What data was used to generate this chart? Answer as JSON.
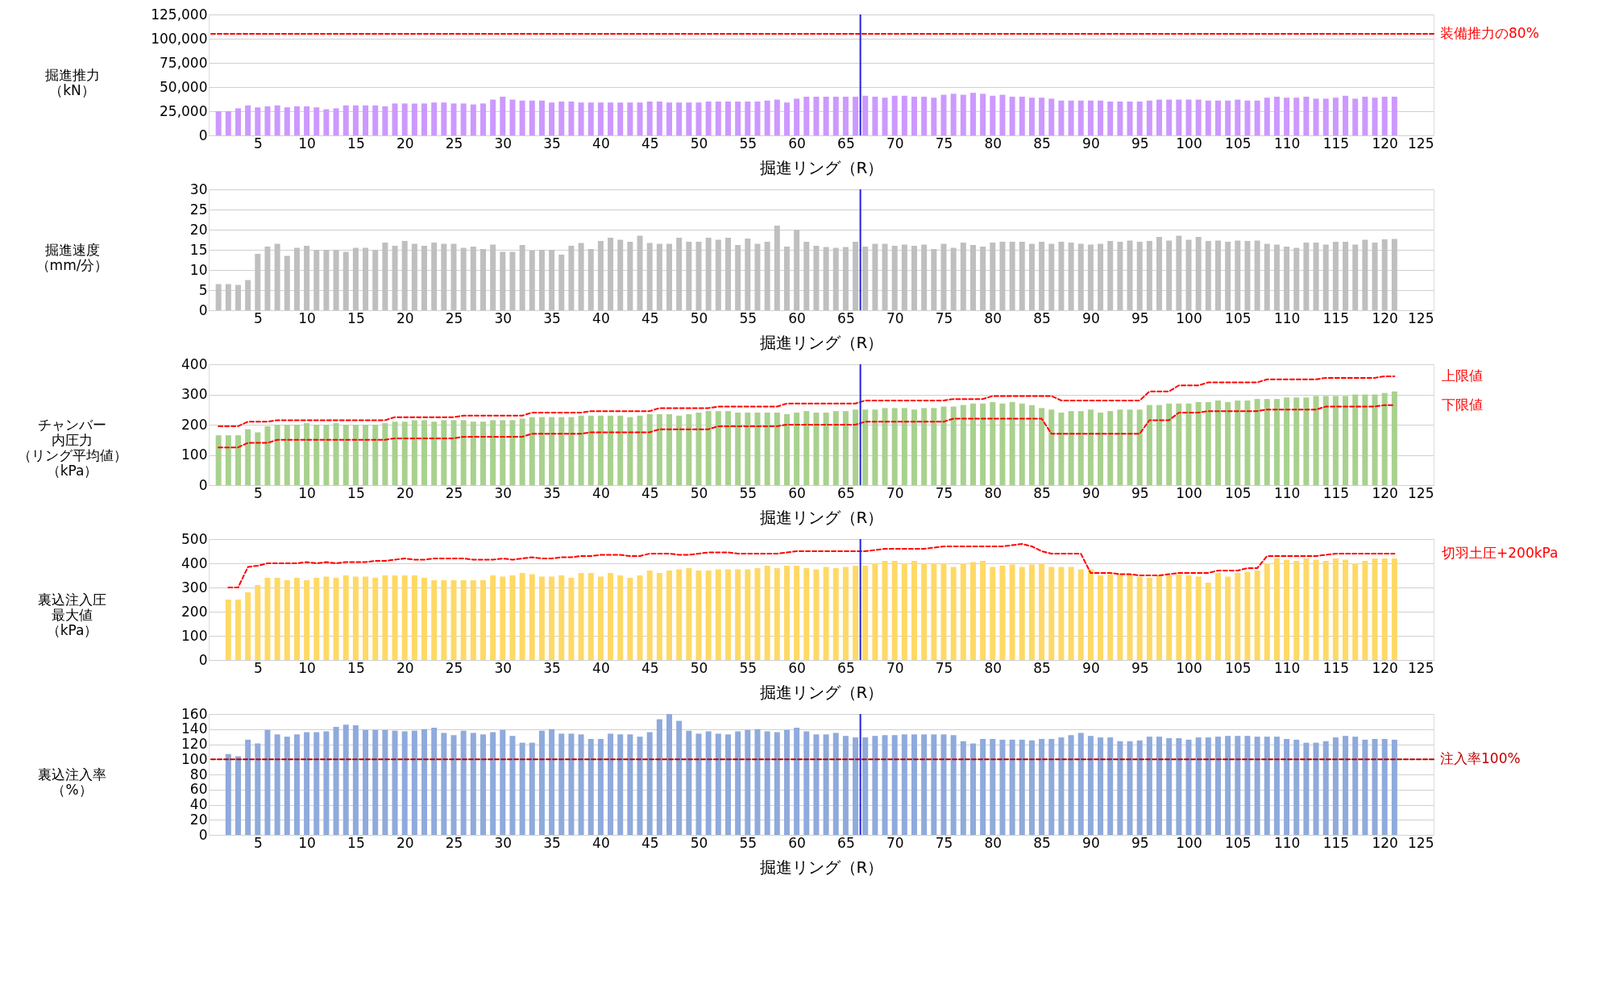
{
  "chart_data": [
    {
      "type": "bar",
      "ylabel": "掘進推力（kN）",
      "xlabel": "掘進リング（R）",
      "grid": "y",
      "xlim": [
        0,
        125
      ],
      "xticks": [
        5,
        10,
        15,
        20,
        25,
        30,
        35,
        40,
        45,
        50,
        55,
        60,
        65,
        70,
        75,
        80,
        85,
        90,
        95,
        100,
        105,
        110,
        115,
        120,
        125
      ],
      "ylim": [
        0,
        125000
      ],
      "yticks": [
        {
          "value": 0,
          "label": "0"
        },
        {
          "value": 25000,
          "label": "25,000"
        },
        {
          "value": 50000,
          "label": "50,000"
        },
        {
          "value": 75000,
          "label": "75,000"
        },
        {
          "value": 100000,
          "label": "100,000"
        },
        {
          "value": 125000,
          "label": "125,000"
        }
      ],
      "x": [
        1,
        2,
        3,
        4,
        5,
        6,
        7,
        8,
        9,
        10,
        11,
        12,
        13,
        14,
        15,
        16,
        17,
        18,
        19,
        20,
        21,
        22,
        23,
        24,
        25,
        26,
        27,
        28,
        29,
        30,
        31,
        32,
        33,
        34,
        35,
        36,
        37,
        38,
        39,
        40,
        41,
        42,
        43,
        44,
        45,
        46,
        47,
        48,
        49,
        50,
        51,
        52,
        53,
        54,
        55,
        56,
        57,
        58,
        59,
        60,
        61,
        62,
        63,
        64,
        65,
        66,
        67,
        68,
        69,
        70,
        71,
        72,
        73,
        74,
        75,
        76,
        77,
        78,
        79,
        80,
        81,
        82,
        83,
        84,
        85,
        86,
        87,
        88,
        89,
        90,
        91,
        92,
        93,
        94,
        95,
        96,
        97,
        98,
        99,
        100,
        101,
        102,
        103,
        104,
        105,
        106,
        107,
        108,
        109,
        110,
        111,
        112,
        113,
        114,
        115,
        116,
        117,
        118,
        119,
        120,
        121
      ],
      "series": [
        {
          "color": "#cc99ff",
          "values": [
            25000,
            25000,
            28000,
            31000,
            29000,
            30000,
            31000,
            29000,
            30000,
            30000,
            29000,
            27000,
            28000,
            31000,
            31000,
            31000,
            31000,
            30000,
            33000,
            33000,
            33000,
            33000,
            34000,
            34000,
            33000,
            33000,
            32000,
            33000,
            37000,
            40000,
            37000,
            36000,
            36000,
            36000,
            34000,
            35000,
            35000,
            34000,
            34000,
            34000,
            34000,
            34000,
            34000,
            34000,
            35000,
            35000,
            34000,
            34000,
            34000,
            34000,
            35000,
            35000,
            35000,
            35000,
            35000,
            35000,
            36000,
            37000,
            34000,
            38000,
            40000,
            40000,
            40000,
            40000,
            40000,
            40000,
            41000,
            40000,
            39000,
            41000,
            41000,
            40000,
            40000,
            39000,
            42000,
            43000,
            42000,
            44000,
            43000,
            41000,
            42000,
            40000,
            40000,
            39000,
            39000,
            38000,
            36000,
            36000,
            36000,
            36000,
            36000,
            35000,
            35000,
            35000,
            35000,
            36000,
            37000,
            37000,
            37000,
            37000,
            37000,
            36000,
            36000,
            36000,
            37000,
            36000,
            36000,
            39000,
            40000,
            39000,
            39000,
            40000,
            38000,
            38000,
            39000,
            41000,
            38000,
            40000,
            39000,
            40000,
            40000
          ]
        }
      ],
      "ref_lines": [
        {
          "axis": "y",
          "value": 105000,
          "label": "装備推力の80%",
          "color": "#ff0000",
          "line_style": "dashed"
        },
        {
          "axis": "x",
          "value": 66.5,
          "color": "#2222dd",
          "line_style": "solid"
        }
      ]
    },
    {
      "type": "bar",
      "ylabel": "掘進速度（mm/分）",
      "xlabel": "掘進リング（R）",
      "grid": "y",
      "xlim": [
        0,
        125
      ],
      "xticks": [
        5,
        10,
        15,
        20,
        25,
        30,
        35,
        40,
        45,
        50,
        55,
        60,
        65,
        70,
        75,
        80,
        85,
        90,
        95,
        100,
        105,
        110,
        115,
        120,
        125
      ],
      "ylim": [
        0,
        30
      ],
      "yticks": [
        0,
        5,
        10,
        15,
        20,
        25,
        30
      ],
      "x": [
        1,
        2,
        3,
        4,
        5,
        6,
        7,
        8,
        9,
        10,
        11,
        12,
        13,
        14,
        15,
        16,
        17,
        18,
        19,
        20,
        21,
        22,
        23,
        24,
        25,
        26,
        27,
        28,
        29,
        30,
        31,
        32,
        33,
        34,
        35,
        36,
        37,
        38,
        39,
        40,
        41,
        42,
        43,
        44,
        45,
        46,
        47,
        48,
        49,
        50,
        51,
        52,
        53,
        54,
        55,
        56,
        57,
        58,
        59,
        60,
        61,
        62,
        63,
        64,
        65,
        66,
        67,
        68,
        69,
        70,
        71,
        72,
        73,
        74,
        75,
        76,
        77,
        78,
        79,
        80,
        81,
        82,
        83,
        84,
        85,
        86,
        87,
        88,
        89,
        90,
        91,
        92,
        93,
        94,
        95,
        96,
        97,
        98,
        99,
        100,
        101,
        102,
        103,
        104,
        105,
        106,
        107,
        108,
        109,
        110,
        111,
        112,
        113,
        114,
        115,
        116,
        117,
        118,
        119,
        120,
        121
      ],
      "series": [
        {
          "color": "#bfbfbf",
          "values": [
            6.5,
            6.5,
            6.3,
            7.5,
            14,
            15.8,
            16.5,
            13.5,
            15.5,
            16,
            15,
            15,
            15,
            14.5,
            15.5,
            15.5,
            15,
            16.8,
            16,
            17.2,
            16.5,
            16,
            16.8,
            16.5,
            16.5,
            15.5,
            15.8,
            15.2,
            16.3,
            14.5,
            14.5,
            16.2,
            14.8,
            15,
            15,
            13.8,
            16,
            16.7,
            15.2,
            17.2,
            18,
            17.5,
            17,
            18.5,
            16.7,
            16.5,
            16.5,
            18,
            17,
            17,
            18,
            17.5,
            18,
            16.2,
            17.8,
            16.5,
            17,
            21,
            15.8,
            20,
            17,
            16,
            15.7,
            15.5,
            15.7,
            17,
            15.8,
            16.5,
            16.5,
            16,
            16.3,
            16,
            16.3,
            15.2,
            16.5,
            15.5,
            16.8,
            16.2,
            15.8,
            16.8,
            17,
            17,
            17,
            16.5,
            17,
            16.5,
            17,
            16.8,
            16.5,
            16.3,
            16.5,
            17.2,
            17,
            17.3,
            17,
            17.2,
            18.2,
            17.3,
            18.5,
            17.5,
            18.2,
            17.2,
            17.3,
            17,
            17.3,
            17.2,
            17.3,
            16.5,
            16.3,
            15.8,
            15.5,
            16.8,
            16.8,
            16.3,
            17,
            17,
            16.3,
            17.5,
            16.8,
            17.6,
            17.7
          ]
        }
      ],
      "ref_lines": [
        {
          "axis": "x",
          "value": 66.5,
          "color": "#2222dd",
          "line_style": "solid"
        }
      ]
    },
    {
      "type": "bar",
      "ylabel": "チャンバー内圧力（リング平均値）（kPa）",
      "xlabel": "掘進リング（R）",
      "grid": "y",
      "xlim": [
        0,
        125
      ],
      "xticks": [
        5,
        10,
        15,
        20,
        25,
        30,
        35,
        40,
        45,
        50,
        55,
        60,
        65,
        70,
        75,
        80,
        85,
        90,
        95,
        100,
        105,
        110,
        115,
        120,
        125
      ],
      "ylim": [
        0,
        400
      ],
      "yticks": [
        0,
        100,
        200,
        300,
        400
      ],
      "line_style": "dashed",
      "x": [
        1,
        2,
        3,
        4,
        5,
        6,
        7,
        8,
        9,
        10,
        11,
        12,
        13,
        14,
        15,
        16,
        17,
        18,
        19,
        20,
        21,
        22,
        23,
        24,
        25,
        26,
        27,
        28,
        29,
        30,
        31,
        32,
        33,
        34,
        35,
        36,
        37,
        38,
        39,
        40,
        41,
        42,
        43,
        44,
        45,
        46,
        47,
        48,
        49,
        50,
        51,
        52,
        53,
        54,
        55,
        56,
        57,
        58,
        59,
        60,
        61,
        62,
        63,
        64,
        65,
        66,
        67,
        68,
        69,
        70,
        71,
        72,
        73,
        74,
        75,
        76,
        77,
        78,
        79,
        80,
        81,
        82,
        83,
        84,
        85,
        86,
        87,
        88,
        89,
        90,
        91,
        92,
        93,
        94,
        95,
        96,
        97,
        98,
        99,
        100,
        101,
        102,
        103,
        104,
        105,
        106,
        107,
        108,
        109,
        110,
        111,
        112,
        113,
        114,
        115,
        116,
        117,
        118,
        119,
        120,
        121
      ],
      "series": [
        {
          "color": "#a9d18e",
          "values": [
            165,
            165,
            165,
            185,
            175,
            195,
            200,
            200,
            200,
            205,
            200,
            200,
            205,
            200,
            200,
            200,
            200,
            205,
            210,
            210,
            215,
            215,
            210,
            215,
            215,
            215,
            210,
            210,
            215,
            215,
            215,
            220,
            225,
            225,
            225,
            225,
            225,
            230,
            230,
            230,
            230,
            230,
            225,
            230,
            235,
            235,
            235,
            230,
            235,
            240,
            245,
            245,
            245,
            240,
            240,
            240,
            240,
            240,
            235,
            240,
            245,
            240,
            240,
            245,
            245,
            250,
            250,
            250,
            255,
            255,
            255,
            250,
            255,
            255,
            260,
            260,
            265,
            270,
            270,
            275,
            270,
            275,
            270,
            265,
            255,
            250,
            240,
            245,
            245,
            250,
            240,
            245,
            250,
            250,
            250,
            265,
            265,
            270,
            270,
            270,
            275,
            275,
            280,
            275,
            280,
            280,
            285,
            285,
            285,
            290,
            290,
            290,
            295,
            295,
            295,
            295,
            300,
            300,
            300,
            305,
            310
          ]
        },
        {
          "type": "line",
          "name": "上限値",
          "color": "#ff0000",
          "values": [
            195,
            195,
            195,
            210,
            210,
            210,
            215,
            215,
            215,
            215,
            215,
            215,
            215,
            215,
            215,
            215,
            215,
            215,
            225,
            225,
            225,
            225,
            225,
            225,
            225,
            230,
            230,
            230,
            230,
            230,
            230,
            230,
            240,
            240,
            240,
            240,
            240,
            240,
            245,
            245,
            245,
            245,
            245,
            245,
            245,
            255,
            255,
            255,
            255,
            255,
            255,
            260,
            260,
            260,
            260,
            260,
            260,
            260,
            270,
            270,
            270,
            270,
            270,
            270,
            270,
            270,
            280,
            280,
            280,
            280,
            280,
            280,
            280,
            280,
            280,
            285,
            285,
            285,
            285,
            295,
            295,
            295,
            295,
            295,
            295,
            295,
            280,
            280,
            280,
            280,
            280,
            280,
            280,
            280,
            280,
            310,
            310,
            310,
            330,
            330,
            330,
            340,
            340,
            340,
            340,
            340,
            340,
            350,
            350,
            350,
            350,
            350,
            350,
            355,
            355,
            355,
            355,
            355,
            355,
            360,
            360
          ]
        },
        {
          "type": "line",
          "name": "下限値",
          "color": "#ff0000",
          "values": [
            125,
            125,
            125,
            140,
            140,
            140,
            150,
            150,
            150,
            150,
            150,
            150,
            150,
            150,
            150,
            150,
            150,
            150,
            155,
            155,
            155,
            155,
            155,
            155,
            155,
            160,
            160,
            160,
            160,
            160,
            160,
            160,
            170,
            170,
            170,
            170,
            170,
            170,
            175,
            175,
            175,
            175,
            175,
            175,
            175,
            185,
            185,
            185,
            185,
            185,
            185,
            195,
            195,
            195,
            195,
            195,
            195,
            195,
            200,
            200,
            200,
            200,
            200,
            200,
            200,
            200,
            210,
            210,
            210,
            210,
            210,
            210,
            210,
            210,
            210,
            220,
            220,
            220,
            220,
            220,
            220,
            220,
            220,
            220,
            220,
            170,
            170,
            170,
            170,
            170,
            170,
            170,
            170,
            170,
            170,
            215,
            215,
            215,
            240,
            240,
            240,
            245,
            245,
            245,
            245,
            245,
            245,
            250,
            250,
            250,
            250,
            250,
            250,
            260,
            260,
            260,
            260,
            260,
            260,
            265,
            265
          ]
        }
      ],
      "ref_lines": [
        {
          "axis": "x",
          "value": 66.5,
          "color": "#2222dd",
          "line_style": "solid"
        }
      ]
    },
    {
      "type": "bar",
      "ylabel": "裏込注入圧最大値（kPa）",
      "xlabel": "掘進リング（R）",
      "grid": "y",
      "xlim": [
        0,
        125
      ],
      "xticks": [
        5,
        10,
        15,
        20,
        25,
        30,
        35,
        40,
        45,
        50,
        55,
        60,
        65,
        70,
        75,
        80,
        85,
        90,
        95,
        100,
        105,
        110,
        115,
        120,
        125
      ],
      "ylim": [
        0,
        500
      ],
      "yticks": [
        0,
        100,
        200,
        300,
        400,
        500
      ],
      "line_style": "dashed",
      "x": [
        2,
        3,
        4,
        5,
        6,
        7,
        8,
        9,
        10,
        11,
        12,
        13,
        14,
        15,
        16,
        17,
        18,
        19,
        20,
        21,
        22,
        23,
        24,
        25,
        26,
        27,
        28,
        29,
        30,
        31,
        32,
        33,
        34,
        35,
        36,
        37,
        38,
        39,
        40,
        41,
        42,
        43,
        44,
        45,
        46,
        47,
        48,
        49,
        50,
        51,
        52,
        53,
        54,
        55,
        56,
        57,
        58,
        59,
        60,
        61,
        62,
        63,
        64,
        65,
        66,
        67,
        68,
        69,
        70,
        71,
        72,
        73,
        74,
        75,
        76,
        77,
        78,
        79,
        80,
        81,
        82,
        83,
        84,
        85,
        86,
        87,
        88,
        89,
        90,
        91,
        92,
        93,
        94,
        95,
        96,
        97,
        98,
        99,
        100,
        101,
        102,
        103,
        104,
        105,
        106,
        107,
        108,
        109,
        110,
        111,
        112,
        113,
        114,
        115,
        116,
        117,
        118,
        119,
        120,
        121
      ],
      "series": [
        {
          "color": "#ffd966",
          "values": [
            250,
            250,
            280,
            310,
            340,
            340,
            330,
            340,
            330,
            340,
            345,
            340,
            350,
            345,
            345,
            340,
            350,
            350,
            350,
            350,
            340,
            330,
            330,
            330,
            330,
            330,
            330,
            350,
            345,
            350,
            360,
            355,
            345,
            345,
            350,
            340,
            360,
            360,
            345,
            360,
            350,
            340,
            350,
            370,
            360,
            370,
            375,
            380,
            370,
            370,
            375,
            375,
            375,
            375,
            380,
            390,
            380,
            390,
            390,
            380,
            375,
            385,
            380,
            385,
            390,
            390,
            400,
            410,
            410,
            400,
            410,
            400,
            400,
            400,
            385,
            400,
            405,
            410,
            385,
            390,
            395,
            385,
            395,
            400,
            385,
            385,
            385,
            375,
            375,
            350,
            355,
            355,
            355,
            345,
            340,
            350,
            350,
            355,
            350,
            345,
            320,
            360,
            345,
            360,
            365,
            370,
            400,
            420,
            415,
            410,
            420,
            415,
            410,
            420,
            415,
            400,
            410,
            420,
            420,
            420
          ]
        },
        {
          "type": "line",
          "name": "切羽土圧+200kPa",
          "color": "#ff0000",
          "values": [
            300,
            300,
            385,
            390,
            400,
            400,
            400,
            400,
            405,
            400,
            405,
            400,
            405,
            405,
            405,
            410,
            410,
            415,
            420,
            415,
            415,
            420,
            420,
            420,
            420,
            415,
            415,
            415,
            420,
            415,
            420,
            425,
            420,
            420,
            425,
            425,
            430,
            430,
            435,
            435,
            435,
            430,
            430,
            440,
            440,
            440,
            435,
            435,
            440,
            445,
            445,
            445,
            440,
            440,
            440,
            440,
            440,
            445,
            450,
            450,
            450,
            450,
            450,
            450,
            450,
            450,
            455,
            460,
            460,
            460,
            460,
            460,
            465,
            470,
            470,
            470,
            470,
            470,
            470,
            470,
            475,
            480,
            470,
            450,
            440,
            440,
            440,
            440,
            360,
            360,
            360,
            355,
            355,
            350,
            350,
            350,
            355,
            360,
            360,
            360,
            360,
            370,
            370,
            370,
            380,
            380,
            430,
            430,
            430,
            430,
            430,
            430,
            435,
            440,
            440,
            440,
            440,
            440,
            440,
            440
          ]
        }
      ],
      "ref_lines": [
        {
          "axis": "x",
          "value": 66.5,
          "color": "#2222dd",
          "line_style": "solid"
        }
      ]
    },
    {
      "type": "bar",
      "ylabel": "裏込注入率（%）",
      "xlabel": "掘進リング（R）",
      "grid": "y",
      "xlim": [
        0,
        125
      ],
      "xticks": [
        5,
        10,
        15,
        20,
        25,
        30,
        35,
        40,
        45,
        50,
        55,
        60,
        65,
        70,
        75,
        80,
        85,
        90,
        95,
        100,
        105,
        110,
        115,
        120,
        125
      ],
      "ylim": [
        0,
        160
      ],
      "yticks": [
        0,
        20,
        40,
        60,
        80,
        100,
        120,
        140,
        160
      ],
      "x": [
        2,
        3,
        4,
        5,
        6,
        7,
        8,
        9,
        10,
        11,
        12,
        13,
        14,
        15,
        16,
        17,
        18,
        19,
        20,
        21,
        22,
        23,
        24,
        25,
        26,
        27,
        28,
        29,
        30,
        31,
        32,
        33,
        34,
        35,
        36,
        37,
        38,
        39,
        40,
        41,
        42,
        43,
        44,
        45,
        46,
        47,
        48,
        49,
        50,
        51,
        52,
        53,
        54,
        55,
        56,
        57,
        58,
        59,
        60,
        61,
        62,
        63,
        64,
        65,
        66,
        67,
        68,
        69,
        70,
        71,
        72,
        73,
        74,
        75,
        76,
        77,
        78,
        79,
        80,
        81,
        82,
        83,
        84,
        85,
        86,
        87,
        88,
        89,
        90,
        91,
        92,
        93,
        94,
        95,
        96,
        97,
        98,
        99,
        100,
        101,
        102,
        103,
        104,
        105,
        106,
        107,
        108,
        109,
        110,
        111,
        112,
        113,
        114,
        115,
        116,
        117,
        118,
        119,
        120,
        121
      ],
      "series": [
        {
          "color": "#8faadc",
          "values": [
            107,
            104,
            126,
            121,
            139,
            133,
            130,
            133,
            136,
            136,
            137,
            143,
            146,
            145,
            139,
            139,
            139,
            138,
            137,
            138,
            140,
            142,
            135,
            132,
            138,
            135,
            133,
            136,
            139,
            131,
            122,
            122,
            138,
            140,
            134,
            134,
            133,
            127,
            127,
            134,
            133,
            133,
            130,
            136,
            153,
            160,
            151,
            138,
            134,
            137,
            134,
            133,
            137,
            139,
            140,
            137,
            136,
            139,
            142,
            137,
            133,
            133,
            135,
            131,
            129,
            129,
            131,
            132,
            132,
            133,
            133,
            133,
            133,
            133,
            132,
            124,
            121,
            127,
            127,
            126,
            126,
            126,
            125,
            127,
            127,
            129,
            132,
            135,
            131,
            129,
            129,
            124,
            124,
            125,
            130,
            130,
            128,
            128,
            126,
            129,
            129,
            130,
            131,
            131,
            131,
            130,
            130,
            130,
            127,
            126,
            122,
            122,
            124,
            129,
            131,
            130,
            126,
            127,
            127,
            126
          ]
        }
      ],
      "ref_lines": [
        {
          "axis": "y",
          "value": 100,
          "label": "注入率100%",
          "color": "#c00000",
          "line_style": "dashed"
        },
        {
          "axis": "x",
          "value": 66.5,
          "color": "#2222dd",
          "line_style": "solid"
        }
      ]
    }
  ]
}
